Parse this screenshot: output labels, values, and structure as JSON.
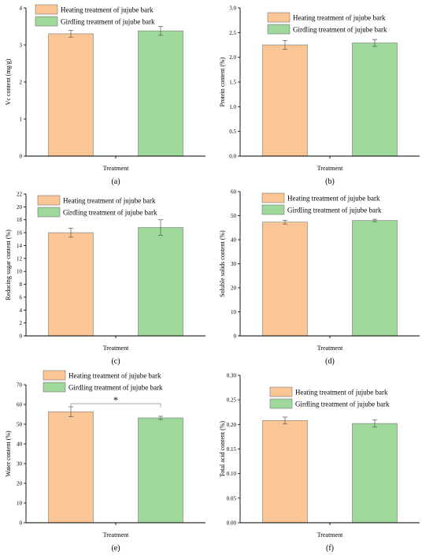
{
  "colors": {
    "heating": "#FBC695",
    "girdling": "#9ED89A",
    "error_bar": "#555555",
    "axis": "#000000"
  },
  "chart_data": [
    {
      "type": "bar",
      "panel_label": "(a)",
      "categories": [
        "Heating treatment of jujube bark",
        "Girdling treatment of jujube bark"
      ],
      "values": [
        3.3,
        3.38
      ],
      "errors": [
        0.09,
        0.12
      ],
      "xlabel": "Treatment",
      "ylabel": "Vc content (mg/g)",
      "ylim": [
        0,
        4
      ],
      "yticks": [
        "0",
        "1",
        "2",
        "3",
        "4"
      ],
      "legend": [
        "Heating treatment of jujube bark",
        "Girdling treatment of jujube bark"
      ],
      "legend_position": "top-left"
    },
    {
      "type": "bar",
      "panel_label": "(b)",
      "categories": [
        "Heating treatment of jujube bark",
        "Girdling treatment of jujube bark"
      ],
      "values": [
        2.25,
        2.29
      ],
      "errors": [
        0.09,
        0.07
      ],
      "xlabel": "Treatment",
      "ylabel": "Protein content (%)",
      "ylim": [
        0,
        3.0
      ],
      "yticks": [
        "0.0",
        "0.5",
        "1.0",
        "1.5",
        "2.0",
        "2.5",
        "3.0"
      ],
      "legend": [
        "Heating treatment of jujube bark",
        "Girdling treatment of jujube bark"
      ],
      "legend_position": "top"
    },
    {
      "type": "bar",
      "panel_label": "(c)",
      "categories": [
        "Heating treatment of jujube bark",
        "Girdling treatment of jujube bark"
      ],
      "values": [
        16.0,
        16.8
      ],
      "errors": [
        0.7,
        1.2
      ],
      "xlabel": "Treatment",
      "ylabel": "Reducing sugar content (%)",
      "ylim": [
        0,
        22
      ],
      "yticks": [
        "0",
        "2",
        "4",
        "6",
        "8",
        "10",
        "12",
        "14",
        "16",
        "18",
        "20",
        "22"
      ],
      "legend": [
        "Heating treatment of jujube bark",
        "Girdling treatment of jujube bark"
      ],
      "legend_position": "top-left"
    },
    {
      "type": "bar",
      "panel_label": "(d)",
      "categories": [
        "Heating treatment of jujube bark",
        "Girdling treatment of jujube bark"
      ],
      "values": [
        47.3,
        48.0
      ],
      "errors": [
        0.8,
        0.5
      ],
      "xlabel": "Treatment",
      "ylabel": "Soluble solids content (%)",
      "ylim": [
        0,
        60
      ],
      "yticks": [
        "0",
        "10",
        "20",
        "30",
        "40",
        "50",
        "60"
      ],
      "legend": [
        "Heating treatment of jujube bark",
        "Girdling treatment of jujube bark"
      ],
      "legend_position": "top"
    },
    {
      "type": "bar",
      "panel_label": "(e)",
      "categories": [
        "Heating treatment of jujube bark",
        "Girdling treatment of jujube bark"
      ],
      "values": [
        56.3,
        53.2
      ],
      "errors": [
        2.5,
        0.8
      ],
      "xlabel": "Treatment",
      "ylabel": "Water content (%)",
      "ylim": [
        0,
        70
      ],
      "yticks": [
        "0",
        "10",
        "20",
        "30",
        "40",
        "50",
        "60",
        "70"
      ],
      "legend": [
        "Heating treatment of jujube bark",
        "Girdling treatment of jujube bark"
      ],
      "legend_position": "top-left",
      "annotation": "*"
    },
    {
      "type": "bar",
      "panel_label": "(f)",
      "categories": [
        "Heating treatment of jujube bark",
        "Girdling treatment of jujube bark"
      ],
      "values": [
        0.208,
        0.202
      ],
      "errors": [
        0.007,
        0.007
      ],
      "xlabel": "Treatment",
      "ylabel": "Total acid content (%)",
      "ylim": [
        0,
        0.3
      ],
      "yticks": [
        "0.00",
        "0.05",
        "0.10",
        "0.15",
        "0.20",
        "0.25",
        "0.30"
      ],
      "legend": [
        "Heating treatment of jujube bark",
        "Girdling treatment of jujube bark"
      ],
      "legend_position": "top"
    }
  ]
}
